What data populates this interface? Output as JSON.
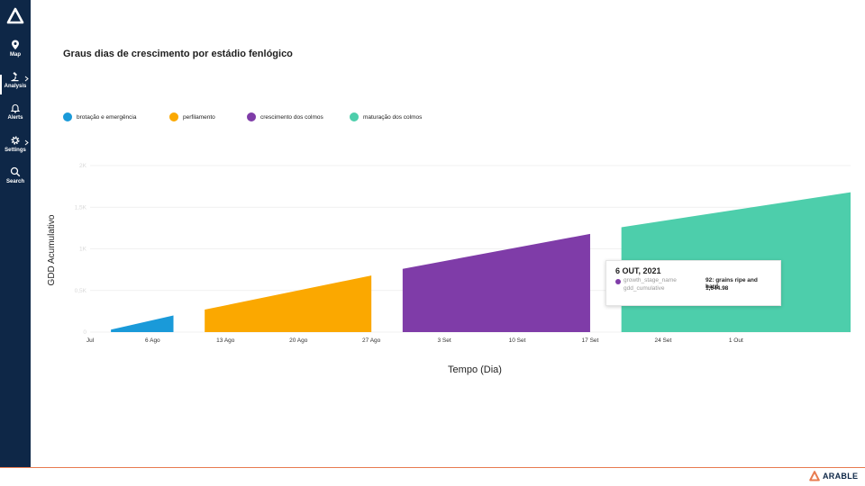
{
  "sidebar": {
    "items": [
      {
        "label": "Map",
        "icon": "map-pin-icon"
      },
      {
        "label": "Analysis",
        "icon": "microscope-icon"
      },
      {
        "label": "Alerts",
        "icon": "bell-icon"
      },
      {
        "label": "Settings",
        "icon": "gear-icon"
      },
      {
        "label": "Search",
        "icon": "search-icon"
      }
    ]
  },
  "page": {
    "title": "Graus dias de crescimento por estádio fenlógico"
  },
  "colors": {
    "sidebar_bg": "#0e2747",
    "stage1": "#1a9ad9",
    "stage2": "#fba800",
    "stage3": "#7f3ca8",
    "stage4": "#4dceab",
    "footer_accent": "#e87b4f"
  },
  "chart_data": {
    "type": "area",
    "title": "Graus dias de crescimento por estádio fenlógico",
    "xlabel": "Tempo (Dia)",
    "ylabel": "GDD Acumulativo",
    "ylim": [
      0,
      2000
    ],
    "yticks": [
      {
        "value": 0,
        "label": "0"
      },
      {
        "value": 500,
        "label": "0,5K"
      },
      {
        "value": 1000,
        "label": "1K"
      },
      {
        "value": 1500,
        "label": "1,5K"
      },
      {
        "value": 2000,
        "label": "2K"
      }
    ],
    "xlim": [
      "2021-07-31",
      "2021-10-12"
    ],
    "xticks": [
      {
        "date": "2021-07-31",
        "label": "Jul"
      },
      {
        "date": "2021-08-06",
        "label": "6 Ago"
      },
      {
        "date": "2021-08-13",
        "label": "13 Ago"
      },
      {
        "date": "2021-08-20",
        "label": "20 Ago"
      },
      {
        "date": "2021-08-27",
        "label": "27 Ago"
      },
      {
        "date": "2021-09-03",
        "label": "3 Set"
      },
      {
        "date": "2021-09-10",
        "label": "10 Set"
      },
      {
        "date": "2021-09-17",
        "label": "17 Set"
      },
      {
        "date": "2021-09-24",
        "label": "24 Set"
      },
      {
        "date": "2021-10-01",
        "label": "1 Out"
      }
    ],
    "grid": true,
    "legend_position": "top-left",
    "series": [
      {
        "name": "brotação e emergência",
        "color": "#1a9ad9",
        "points": [
          [
            "2021-08-02",
            30
          ],
          [
            "2021-08-08",
            200
          ]
        ]
      },
      {
        "name": "perfilamento",
        "color": "#fba800",
        "points": [
          [
            "2021-08-11",
            270
          ],
          [
            "2021-08-27",
            680
          ]
        ]
      },
      {
        "name": "crescimento dos colmos",
        "color": "#7f3ca8",
        "points": [
          [
            "2021-08-30",
            760
          ],
          [
            "2021-09-17",
            1180
          ]
        ]
      },
      {
        "name": "maturação dos colmos",
        "color": "#4dceab",
        "points": [
          [
            "2021-09-20",
            1260
          ],
          [
            "2021-10-12",
            1680
          ]
        ]
      }
    ]
  },
  "tooltip": {
    "date": "6 OUT, 2021",
    "color": "#7f3ca8",
    "rows": [
      {
        "key": "growth_stage_name",
        "value": "92: grains ripe and hard"
      },
      {
        "key": "gdd_cumulative",
        "value": "1,644.98"
      }
    ]
  },
  "footer": {
    "brand": "ARABLE"
  }
}
